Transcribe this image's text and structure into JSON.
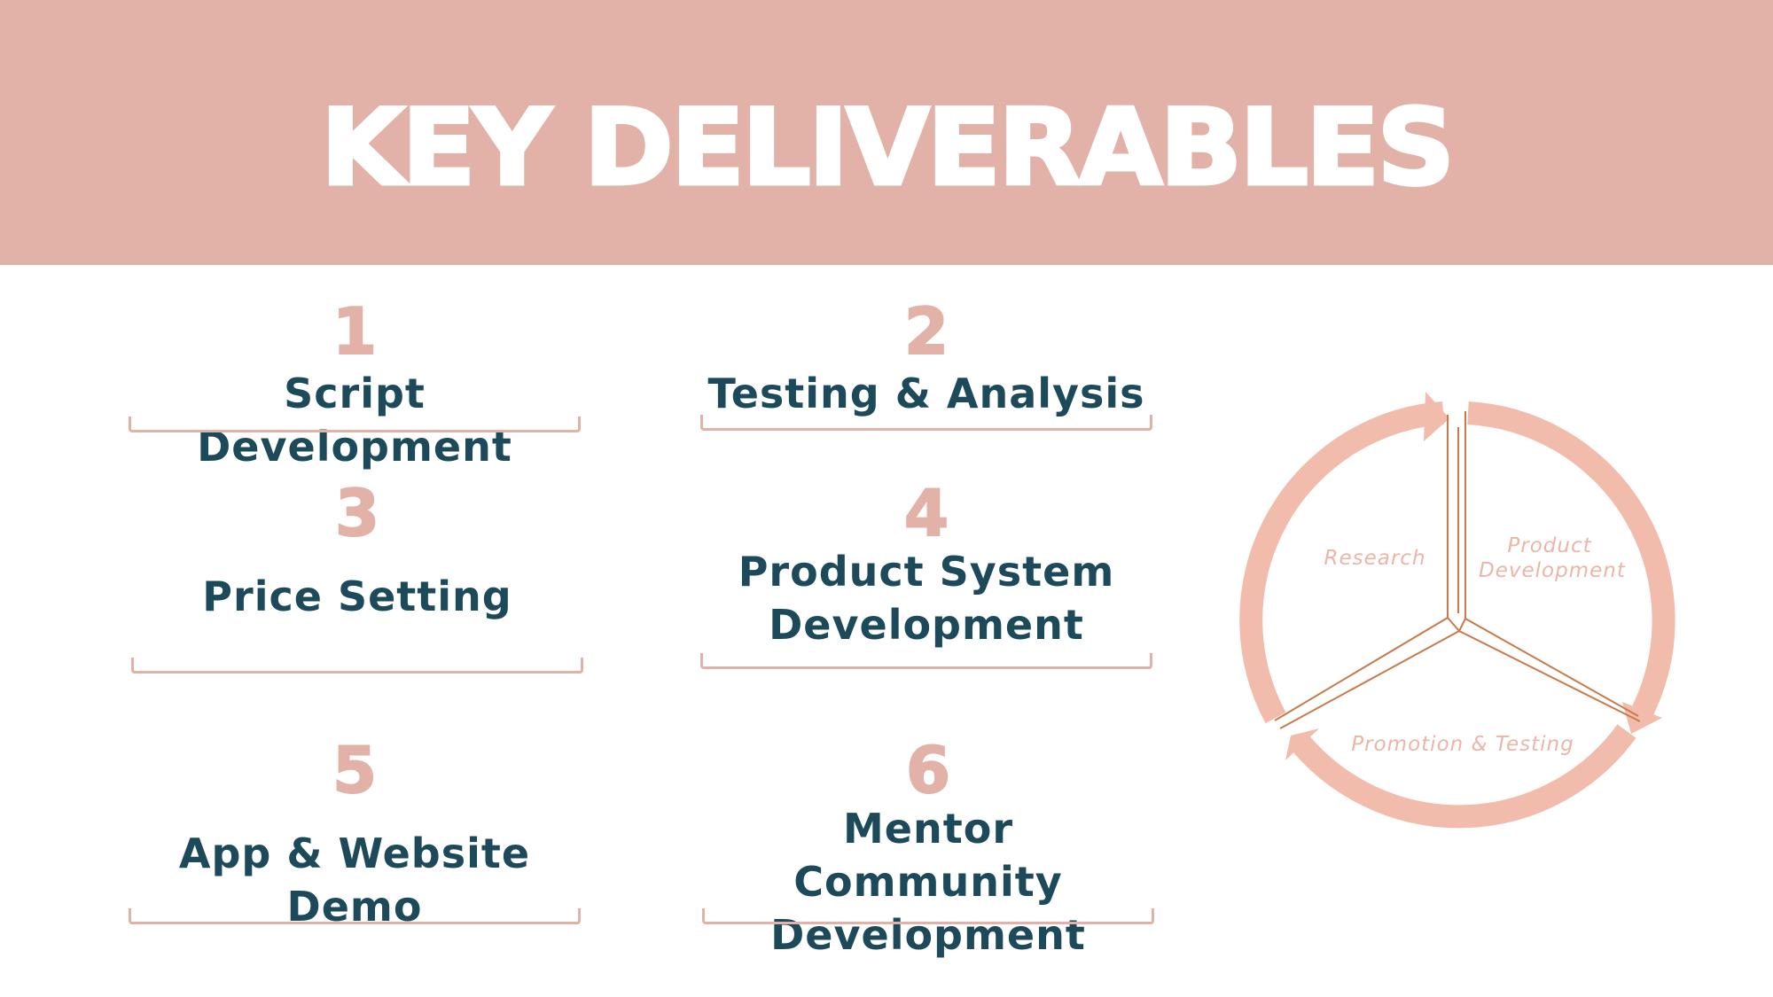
{
  "header": {
    "title": "KEY DELIVERABLES"
  },
  "deliverables": [
    {
      "number": "1",
      "label": "Script Development"
    },
    {
      "number": "2",
      "label": "Testing & Analysis"
    },
    {
      "number": "3",
      "label": "Price Setting"
    },
    {
      "number": "4",
      "label": "Product System Development"
    },
    {
      "number": "5",
      "label": "App & Website Demo"
    },
    {
      "number": "6",
      "label": "Mentor Community Development"
    }
  ],
  "cycle": {
    "stages": [
      "Research",
      "Product Development",
      "Promotion & Testing"
    ]
  },
  "colors": {
    "banner": "#e2b1a7",
    "number": "#e2b1a7",
    "label": "#1c4a5a",
    "arrow": "#f2bcad",
    "divider": "#c87a4c"
  }
}
